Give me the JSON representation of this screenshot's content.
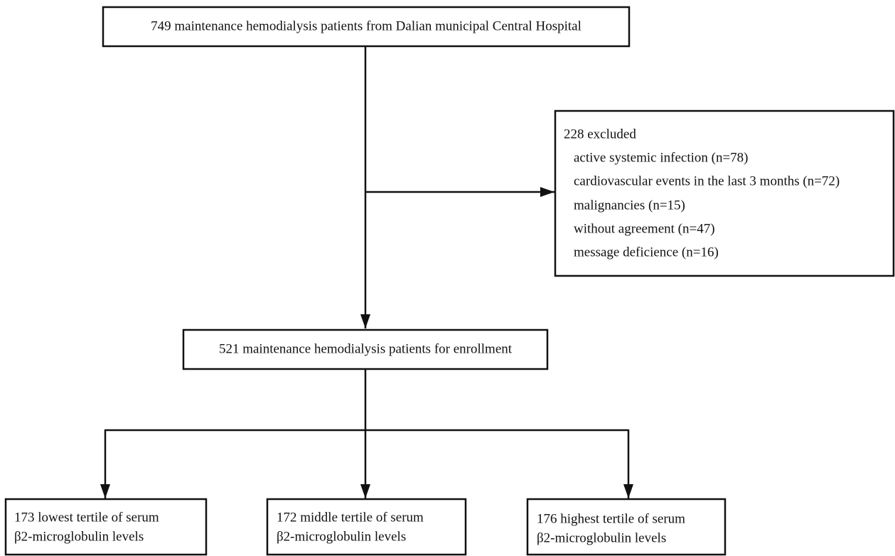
{
  "nodes": [
    {
      "lines": [
        "749 maintenance hemodialysis patients from Dalian municipal Central Hospital"
      ]
    },
    {
      "lines": [
        "228 excluded",
        "active systemic infection (n=78)",
        "cardiovascular events in the last 3 months (n=72)",
        "malignancies (n=15)",
        "without agreement (n=47)",
        "message deficience (n=16)"
      ]
    },
    {
      "lines": [
        "521 maintenance hemodialysis patients for enrollment"
      ]
    },
    {
      "lines": [
        "173 lowest tertile of serum",
        "β2-microglobulin levels"
      ]
    },
    {
      "lines": [
        "172 middle tertile of serum",
        "β2-microglobulin levels"
      ]
    },
    {
      "lines": [
        "176 highest tertile of serum",
        "β2-microglobulin levels"
      ]
    }
  ]
}
